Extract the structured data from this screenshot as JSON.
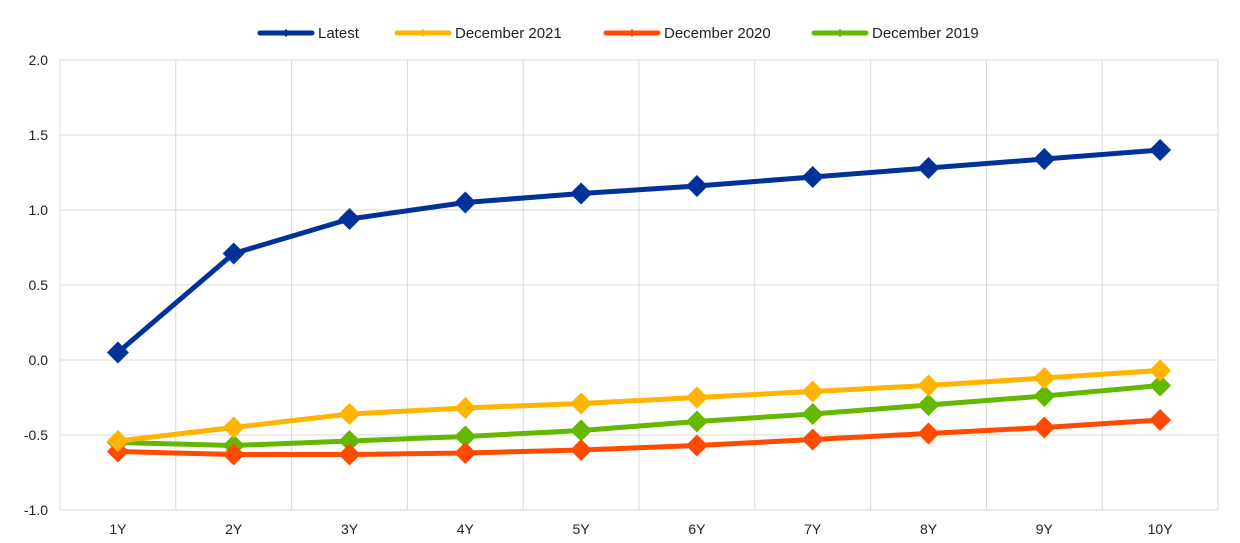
{
  "chart_data": {
    "type": "line",
    "title": "",
    "xlabel": "",
    "ylabel": "",
    "categories": [
      "1Y",
      "2Y",
      "3Y",
      "4Y",
      "5Y",
      "6Y",
      "7Y",
      "8Y",
      "9Y",
      "10Y"
    ],
    "ylim": [
      -1.0,
      2.0
    ],
    "yticks": [
      "2.0",
      "1.5",
      "1.0",
      "0.5",
      "0.0",
      "-0.5",
      "-1.0"
    ],
    "ytick_values": [
      2.0,
      1.5,
      1.0,
      0.5,
      0.0,
      -0.5,
      -1.0
    ],
    "grid": true,
    "legend_position": "top-center",
    "series": [
      {
        "name": "Latest",
        "color": "#003299",
        "values": [
          0.05,
          0.71,
          0.94,
          1.05,
          1.11,
          1.16,
          1.22,
          1.28,
          1.34,
          1.4
        ]
      },
      {
        "name": "December 2021",
        "color": "#FFB400",
        "values": [
          -0.54,
          -0.45,
          -0.36,
          -0.32,
          -0.29,
          -0.25,
          -0.21,
          -0.17,
          -0.12,
          -0.07
        ]
      },
      {
        "name": "December 2020",
        "color": "#FF4B00",
        "values": [
          -0.61,
          -0.63,
          -0.63,
          -0.62,
          -0.6,
          -0.57,
          -0.53,
          -0.49,
          -0.45,
          -0.4
        ]
      },
      {
        "name": "December 2019",
        "color": "#65B800",
        "values": [
          -0.55,
          -0.57,
          -0.54,
          -0.51,
          -0.47,
          -0.41,
          -0.36,
          -0.3,
          -0.24,
          -0.17
        ]
      }
    ]
  }
}
